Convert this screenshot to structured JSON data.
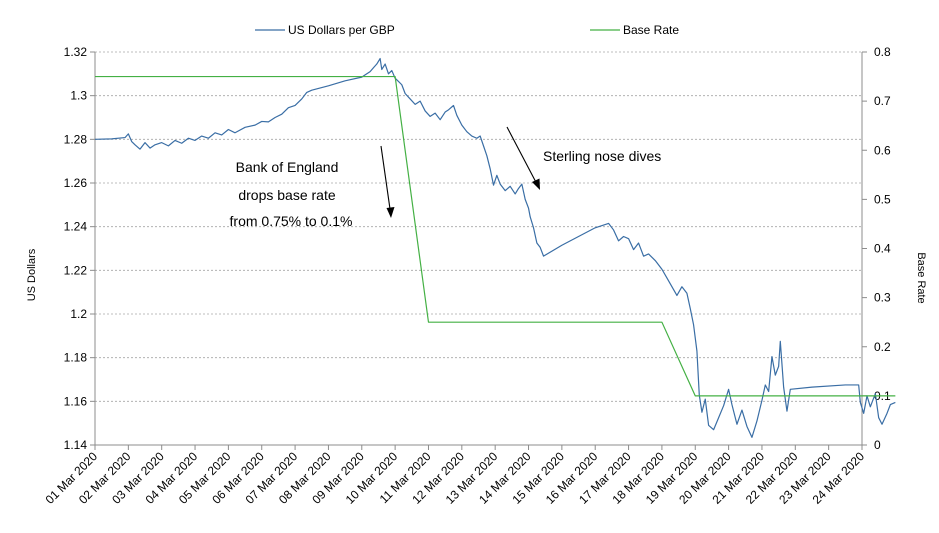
{
  "chart_data": {
    "type": "line",
    "title": "",
    "xlabel": "",
    "ylabel": "US Dollars",
    "y2label": "Base Rate",
    "ylim": [
      1.14,
      1.32
    ],
    "y2lim": [
      0,
      0.8
    ],
    "yticks": [
      "1.32",
      "1.3",
      "1.28",
      "1.26",
      "1.24",
      "1.22",
      "1.2",
      "1.18",
      "1.16",
      "1.14"
    ],
    "y2ticks": [
      "0.8",
      "0.7",
      "0.6",
      "0.5",
      "0.4",
      "0.3",
      "0.2",
      "0.1",
      "0"
    ],
    "categories": [
      "01 Mar 2020",
      "02 Mar 2020",
      "03 Mar 2020",
      "04 Mar 2020",
      "05 Mar 2020",
      "06 Mar 2020",
      "07 Mar 2020",
      "08 Mar 2020",
      "09 Mar 2020",
      "10 Mar 2020",
      "11 Mar 2020",
      "12 Mar 2020",
      "13 Mar 2020",
      "14 Mar 2020",
      "15 Mar 2020",
      "16 Mar 2020",
      "17 Mar 2020",
      "18 Mar 2020",
      "19 Mar 2020",
      "20 Mar 2020",
      "21 Mar 2020",
      "22 Mar 2020",
      "23 Mar 2020",
      "24 Mar 2020"
    ],
    "legend_position": "top",
    "grid": true,
    "series": [
      {
        "name": "US Dollars per GBP",
        "axis": "left",
        "color": "#3a6ea5",
        "points": [
          [
            0.0,
            1.28
          ],
          [
            0.5,
            1.2802
          ],
          [
            0.9,
            1.2808
          ],
          [
            1.0,
            1.2825
          ],
          [
            1.1,
            1.279
          ],
          [
            1.2,
            1.2775
          ],
          [
            1.35,
            1.2755
          ],
          [
            1.5,
            1.2785
          ],
          [
            1.65,
            1.276
          ],
          [
            1.8,
            1.2775
          ],
          [
            2.0,
            1.2785
          ],
          [
            2.2,
            1.277
          ],
          [
            2.4,
            1.2795
          ],
          [
            2.6,
            1.2782
          ],
          [
            2.8,
            1.2805
          ],
          [
            3.0,
            1.2795
          ],
          [
            3.2,
            1.2815
          ],
          [
            3.4,
            1.2805
          ],
          [
            3.6,
            1.283
          ],
          [
            3.8,
            1.282
          ],
          [
            4.0,
            1.2845
          ],
          [
            4.2,
            1.283
          ],
          [
            4.5,
            1.2855
          ],
          [
            4.8,
            1.2865
          ],
          [
            5.0,
            1.2882
          ],
          [
            5.2,
            1.288
          ],
          [
            5.4,
            1.29
          ],
          [
            5.6,
            1.2915
          ],
          [
            5.8,
            1.2945
          ],
          [
            6.0,
            1.2955
          ],
          [
            6.2,
            1.2985
          ],
          [
            6.35,
            1.3015
          ],
          [
            6.5,
            1.3025
          ],
          [
            7.0,
            1.3045
          ],
          [
            7.5,
            1.3068
          ],
          [
            8.0,
            1.3085
          ],
          [
            8.1,
            1.3095
          ],
          [
            8.25,
            1.311
          ],
          [
            8.35,
            1.3128
          ],
          [
            8.45,
            1.3145
          ],
          [
            8.55,
            1.317
          ],
          [
            8.6,
            1.312
          ],
          [
            8.7,
            1.3145
          ],
          [
            8.8,
            1.31
          ],
          [
            8.9,
            1.3115
          ],
          [
            9.0,
            1.308
          ],
          [
            9.1,
            1.3065
          ],
          [
            9.2,
            1.305
          ],
          [
            9.3,
            1.301
          ],
          [
            9.45,
            1.2985
          ],
          [
            9.6,
            1.296
          ],
          [
            9.75,
            1.2975
          ],
          [
            9.9,
            1.293
          ],
          [
            10.05,
            1.2905
          ],
          [
            10.2,
            1.292
          ],
          [
            10.35,
            1.289
          ],
          [
            10.5,
            1.2925
          ],
          [
            10.6,
            1.2935
          ],
          [
            10.75,
            1.2955
          ],
          [
            10.85,
            1.291
          ],
          [
            11.0,
            1.2865
          ],
          [
            11.15,
            1.2835
          ],
          [
            11.3,
            1.2815
          ],
          [
            11.45,
            1.2805
          ],
          [
            11.55,
            1.2815
          ],
          [
            11.65,
            1.277
          ],
          [
            11.75,
            1.2725
          ],
          [
            11.85,
            1.2665
          ],
          [
            11.95,
            1.259
          ],
          [
            12.05,
            1.2635
          ],
          [
            12.15,
            1.2595
          ],
          [
            12.3,
            1.2565
          ],
          [
            12.45,
            1.2585
          ],
          [
            12.6,
            1.255
          ],
          [
            12.7,
            1.2575
          ],
          [
            12.8,
            1.2595
          ],
          [
            12.9,
            1.2525
          ],
          [
            13.0,
            1.2485
          ],
          [
            13.05,
            1.2445
          ],
          [
            13.15,
            1.2395
          ],
          [
            13.25,
            1.2325
          ],
          [
            13.35,
            1.2305
          ],
          [
            13.45,
            1.2265
          ],
          [
            14.0,
            1.2315
          ],
          [
            14.5,
            1.2355
          ],
          [
            15.0,
            1.2395
          ],
          [
            15.4,
            1.2415
          ],
          [
            15.55,
            1.2385
          ],
          [
            15.7,
            1.2335
          ],
          [
            15.85,
            1.2355
          ],
          [
            16.0,
            1.2345
          ],
          [
            16.15,
            1.2295
          ],
          [
            16.3,
            1.2325
          ],
          [
            16.45,
            1.2265
          ],
          [
            16.6,
            1.2275
          ],
          [
            16.8,
            1.2245
          ],
          [
            17.0,
            1.2205
          ],
          [
            17.15,
            1.2165
          ],
          [
            17.3,
            1.2125
          ],
          [
            17.45,
            1.2085
          ],
          [
            17.6,
            1.2125
          ],
          [
            17.75,
            1.2095
          ],
          [
            17.85,
            1.2025
          ],
          [
            17.95,
            1.195
          ],
          [
            18.05,
            1.183
          ],
          [
            18.12,
            1.163
          ],
          [
            18.2,
            1.155
          ],
          [
            18.3,
            1.161
          ],
          [
            18.4,
            1.149
          ],
          [
            18.55,
            1.147
          ],
          [
            18.7,
            1.1525
          ],
          [
            18.85,
            1.158
          ],
          [
            19.0,
            1.1655
          ],
          [
            19.1,
            1.1585
          ],
          [
            19.25,
            1.1495
          ],
          [
            19.4,
            1.156
          ],
          [
            19.55,
            1.1485
          ],
          [
            19.7,
            1.1435
          ],
          [
            19.85,
            1.151
          ],
          [
            20.0,
            1.1605
          ],
          [
            20.1,
            1.1675
          ],
          [
            20.2,
            1.1645
          ],
          [
            20.3,
            1.1805
          ],
          [
            20.4,
            1.172
          ],
          [
            20.5,
            1.176
          ],
          [
            20.55,
            1.1875
          ],
          [
            20.65,
            1.1665
          ],
          [
            20.75,
            1.1555
          ],
          [
            20.85,
            1.1655
          ],
          [
            21.5,
            1.1665
          ],
          [
            22.5,
            1.1675
          ],
          [
            22.9,
            1.1675
          ],
          [
            22.95,
            1.1595
          ],
          [
            23.05,
            1.1545
          ],
          [
            23.15,
            1.1625
          ],
          [
            23.25,
            1.1575
          ],
          [
            23.4,
            1.1635
          ],
          [
            23.5,
            1.1525
          ],
          [
            23.6,
            1.1495
          ],
          [
            23.75,
            1.1545
          ],
          [
            23.85,
            1.1585
          ],
          [
            24.0,
            1.1595
          ]
        ]
      },
      {
        "name": "Base Rate",
        "axis": "right",
        "color": "#44b044",
        "points": [
          [
            0.0,
            0.75
          ],
          [
            9.0,
            0.75
          ],
          [
            10.0,
            0.25
          ],
          [
            17.0,
            0.25
          ],
          [
            18.0,
            0.1
          ],
          [
            24.0,
            0.1
          ]
        ]
      }
    ],
    "annotations": [
      {
        "lines": [
          "Bank of England",
          "drops base rate",
          "from 0.75% to 0.1%"
        ]
      },
      {
        "lines": [
          "Sterling nose dives"
        ]
      }
    ]
  }
}
